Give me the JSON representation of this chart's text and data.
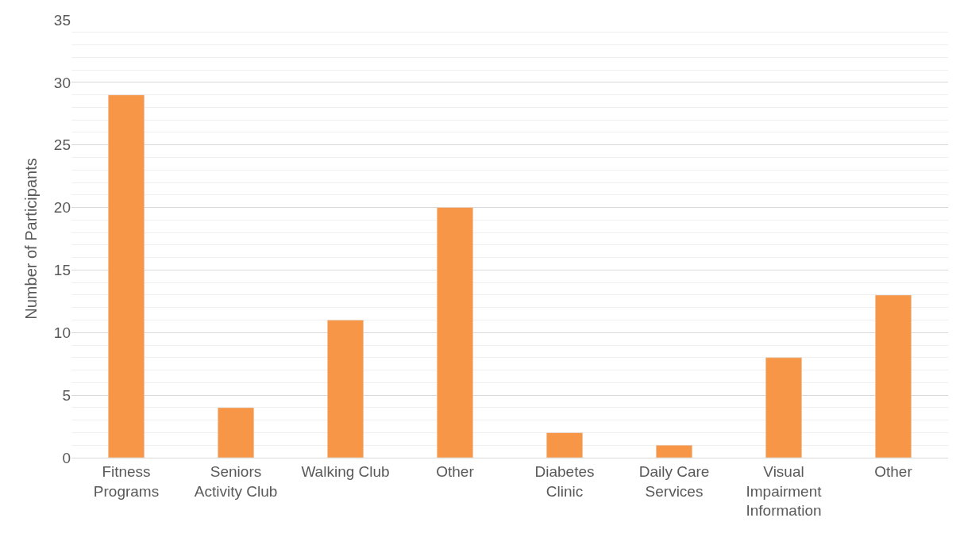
{
  "chart_data": {
    "type": "bar",
    "ylabel": "Number of Participants",
    "categories": [
      "Fitness Programs",
      "Seniors Activity Club",
      "Walking Club",
      "Other",
      "Diabetes Clinic",
      "Daily Care Services",
      "Visual Impairment Information",
      "Other"
    ],
    "values": [
      29,
      4,
      11,
      20,
      2,
      1,
      8,
      13
    ],
    "color": "#f79646",
    "ylim": [
      0,
      35
    ],
    "yticks": [
      0,
      {
        "value": 1,
        "label": null
      },
      {
        "value": 2,
        "label": null
      },
      {
        "value": 3,
        "label": null
      },
      {
        "value": 4,
        "label": null
      },
      5,
      {
        "value": 6,
        "label": null
      },
      {
        "value": 7,
        "label": null
      },
      {
        "value": 8,
        "label": null
      },
      {
        "value": 9,
        "label": null
      },
      10,
      {
        "value": 11,
        "label": null
      },
      {
        "value": 12,
        "label": null
      },
      {
        "value": 13,
        "label": null
      },
      {
        "value": 14,
        "label": null
      },
      15,
      {
        "value": 16,
        "label": null
      },
      {
        "value": 17,
        "label": null
      },
      {
        "value": 18,
        "label": null
      },
      {
        "value": 19,
        "label": null
      },
      20,
      {
        "value": 21,
        "label": null
      },
      {
        "value": 22,
        "label": null
      },
      {
        "value": 23,
        "label": null
      },
      {
        "value": 24,
        "label": null
      },
      25,
      {
        "value": 26,
        "label": null
      },
      {
        "value": 27,
        "label": null
      },
      {
        "value": 28,
        "label": null
      },
      {
        "value": 29,
        "label": null
      },
      30,
      {
        "value": 31,
        "label": null
      },
      {
        "value": 32,
        "label": null
      },
      {
        "value": 33,
        "label": null
      },
      {
        "value": 34,
        "label": null
      },
      35
    ],
    "grid": "y",
    "legend": false
  }
}
